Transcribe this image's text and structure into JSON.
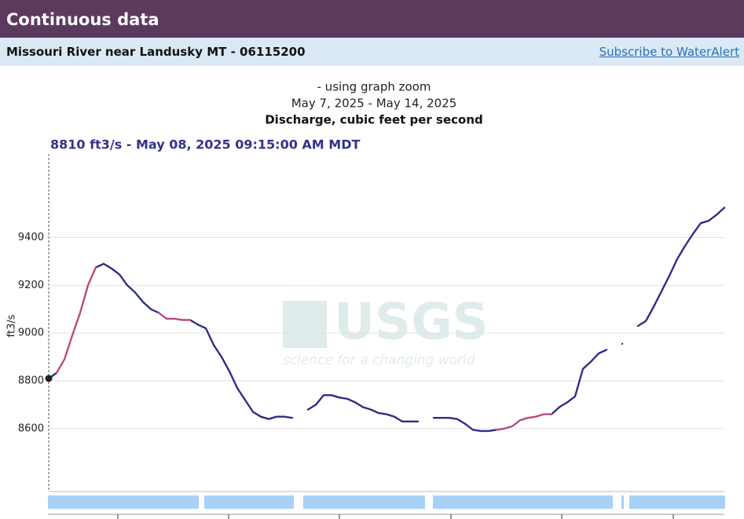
{
  "header": {
    "title": "Continuous data",
    "station": "Missouri River near Landusky MT - 06115200",
    "link": "Subscribe to WaterAlert"
  },
  "chart_data": {
    "type": "line",
    "subtitle": "- using graph zoom",
    "date_range": "May 7, 2025 - May 14, 2025",
    "title": "Discharge, cubic feet per second",
    "tooltip": "8810 ft3/s - May 08, 2025 09:15:00 AM MDT",
    "y_label": "ft3/s",
    "watermark": {
      "logo": "USGS",
      "tagline": "science for a changing world"
    },
    "ylim": [
      8340,
      9750
    ],
    "yticks": [
      8600,
      8800,
      9000,
      9200,
      9400
    ],
    "grid": true,
    "series": [
      {
        "color": "#2e2f86",
        "values": [
          8810,
          8833,
          null,
          null,
          null,
          null,
          9275,
          9290,
          9270,
          9245,
          9200,
          9170,
          9130,
          9100,
          9085,
          null,
          null,
          null,
          9055,
          9035,
          9020,
          8950,
          8900,
          8840,
          8770,
          8720,
          8670,
          8650,
          8640,
          8650,
          8650,
          8645,
          null,
          8680,
          8700,
          8740,
          8740,
          8730,
          8725,
          8710,
          8690,
          8680,
          8665,
          8660,
          8650,
          8630,
          8630,
          8630,
          null,
          8645,
          8645,
          8645,
          8640,
          8620,
          8595,
          8590,
          8590,
          8595,
          null,
          null,
          null,
          null,
          null,
          null,
          8660,
          8690,
          8710,
          8735,
          8850,
          8880,
          8915,
          8930,
          null,
          8955,
          null,
          9030,
          9050,
          9110,
          9175,
          9240,
          9310,
          9365,
          9415,
          9460,
          9470,
          9495,
          9525
        ]
      },
      {
        "color": "#b84a80",
        "values": [
          null,
          8833,
          8890,
          8990,
          9085,
          9200,
          9275,
          null,
          null,
          null,
          null,
          null,
          null,
          null,
          9085,
          9060,
          9060,
          9055,
          9055,
          null,
          null,
          null,
          null,
          null,
          null,
          null,
          null,
          null,
          null,
          null,
          null,
          null,
          null,
          null,
          null,
          null,
          null,
          null,
          null,
          null,
          null,
          null,
          null,
          null,
          null,
          null,
          null,
          null,
          null,
          null,
          null,
          null,
          null,
          null,
          null,
          null,
          null,
          8595,
          8600,
          8610,
          8635,
          8645,
          8650,
          8660,
          8660,
          null,
          null,
          null,
          null,
          null,
          null,
          null,
          null,
          null,
          null,
          null,
          null,
          null,
          null,
          null,
          null,
          null,
          null,
          null,
          null,
          null,
          null
        ]
      }
    ]
  }
}
